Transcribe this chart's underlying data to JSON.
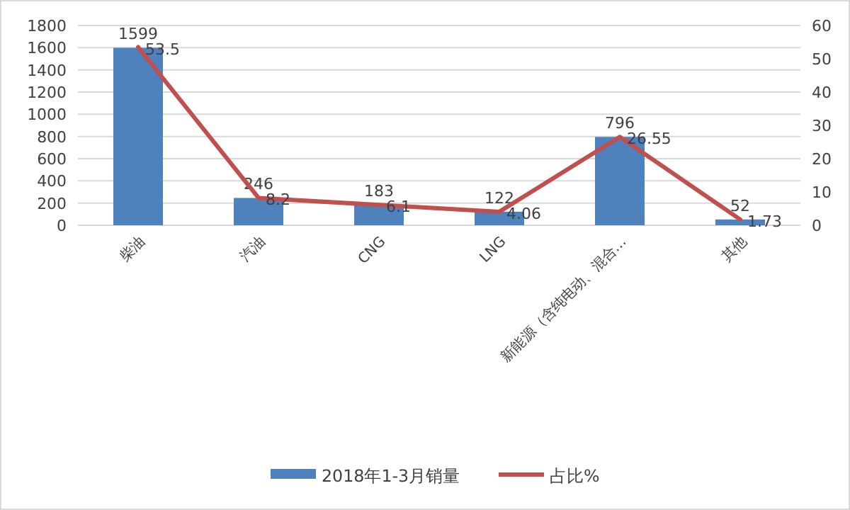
{
  "chart_data": {
    "type": "bar",
    "categories": [
      "柴油",
      "汽油",
      "CNG",
      "LNG",
      "新能源（含纯电动、混合…",
      "其他"
    ],
    "series": [
      {
        "name": "2018年1-3月销量",
        "color": "#4f81bd",
        "values": [
          1599,
          246,
          183,
          122,
          796,
          52
        ]
      },
      {
        "name": "占比%",
        "type": "line",
        "axis": "y2",
        "color": "#c0504d",
        "values": [
          53.5,
          8.2,
          6.1,
          4.06,
          26.55,
          1.73
        ]
      }
    ],
    "ylim": [
      0,
      1800
    ],
    "yticks": [
      0,
      200,
      400,
      600,
      800,
      1000,
      1200,
      1400,
      1600,
      1800
    ],
    "y2lim": [
      0,
      60
    ],
    "y2ticks": [
      0,
      10,
      20,
      30,
      40,
      50,
      60
    ],
    "grid": "y",
    "legend": "bottom",
    "data_labels": true,
    "marker": "none"
  }
}
